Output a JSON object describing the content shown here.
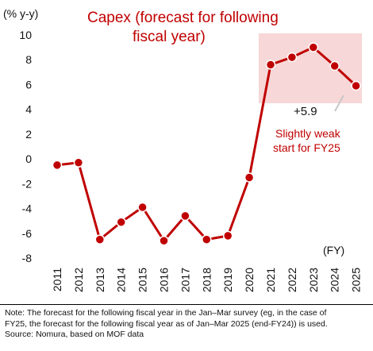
{
  "chart_data": {
    "type": "line",
    "title_lines": [
      "Capex (forecast for following",
      "fiscal year)"
    ],
    "y_unit": "(% y-y)",
    "x_unit": "(FY)",
    "ylim": [
      -8,
      10
    ],
    "yticks": [
      "10",
      "8",
      "6",
      "4",
      "2",
      "0",
      "-2",
      "-4",
      "-6",
      "-8"
    ],
    "ytick_values": [
      10,
      8,
      6,
      4,
      2,
      0,
      -2,
      -4,
      -6,
      -8
    ],
    "categories": [
      "2011",
      "2012",
      "2013",
      "2014",
      "2015",
      "2016",
      "2017",
      "2018",
      "2019",
      "2020",
      "2021",
      "2022",
      "2023",
      "2024",
      "2025"
    ],
    "series": [
      {
        "values": [
          -0.5,
          -0.3,
          -6.5,
          -5.1,
          -3.9,
          -6.6,
          -4.6,
          -6.5,
          -6.2,
          -1.5,
          7.6,
          8.2,
          9.0,
          7.5,
          5.9
        ]
      }
    ],
    "grid": false,
    "annotations": {
      "last_value_label": "+5.9",
      "note_lines": [
        "Slightly weak",
        "start for FY25"
      ]
    },
    "colors": {
      "line": "#c00000",
      "highlight": "#f7d7d7",
      "title": "#c00000"
    }
  },
  "footnote": {
    "lines": [
      "Note: The forecast for the following fiscal year in the Jan–Mar survey (eg, in the case of",
      "FY25, the forecast for the following fiscal year as of Jan–Mar 2025 (end-FY24)) is used.",
      "Source: Nomura, based on MOF data"
    ]
  }
}
